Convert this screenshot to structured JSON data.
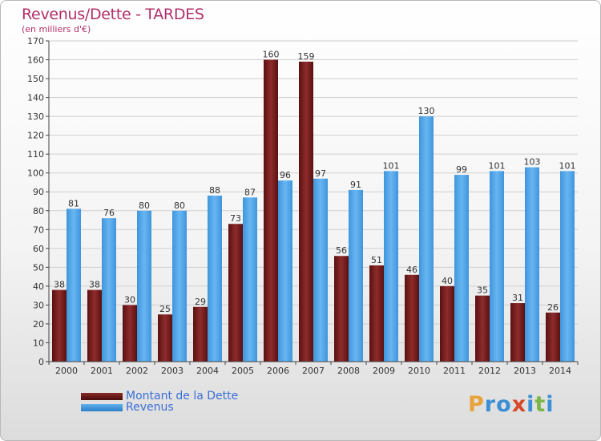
{
  "header": {
    "title": "Revenus/Dette - TARDES",
    "subtitle": "(en milliers d'€)"
  },
  "chart_data": {
    "type": "bar",
    "title": "Revenus/Dette - TARDES",
    "ylabel": "(en milliers d'€)",
    "xlabel": "",
    "ylim": [
      0,
      170
    ],
    "yticks": [
      0,
      10,
      20,
      30,
      40,
      50,
      60,
      70,
      80,
      90,
      100,
      110,
      120,
      130,
      140,
      150,
      160,
      170
    ],
    "categories": [
      "2000",
      "2001",
      "2002",
      "2003",
      "2004",
      "2005",
      "2006",
      "2007",
      "2008",
      "2009",
      "2010",
      "2011",
      "2012",
      "2013",
      "2014"
    ],
    "series": [
      {
        "name": "Montant de la Dette",
        "color": "#7a1f1f",
        "values": [
          38,
          38,
          30,
          25,
          29,
          73,
          160,
          159,
          56,
          51,
          46,
          40,
          35,
          31,
          26
        ]
      },
      {
        "name": "Revenus",
        "color": "#4da3e8",
        "values": [
          81,
          76,
          80,
          80,
          88,
          87,
          96,
          97,
          91,
          101,
          130,
          99,
          101,
          103,
          101
        ]
      }
    ],
    "grid": true,
    "legend": "bottom-left"
  },
  "logo": {
    "text": "Proxiti",
    "letters": [
      {
        "ch": "P",
        "color": "#e8a33a"
      },
      {
        "ch": "r",
        "color": "#3a8fd6"
      },
      {
        "ch": "o",
        "color": "#3a8fd6"
      },
      {
        "ch": "x",
        "color": "#d64a2a"
      },
      {
        "ch": "i",
        "color": "#3a8fd6"
      },
      {
        "ch": "t",
        "color": "#7ab648"
      },
      {
        "ch": "i",
        "color": "#3a8fd6"
      }
    ]
  }
}
